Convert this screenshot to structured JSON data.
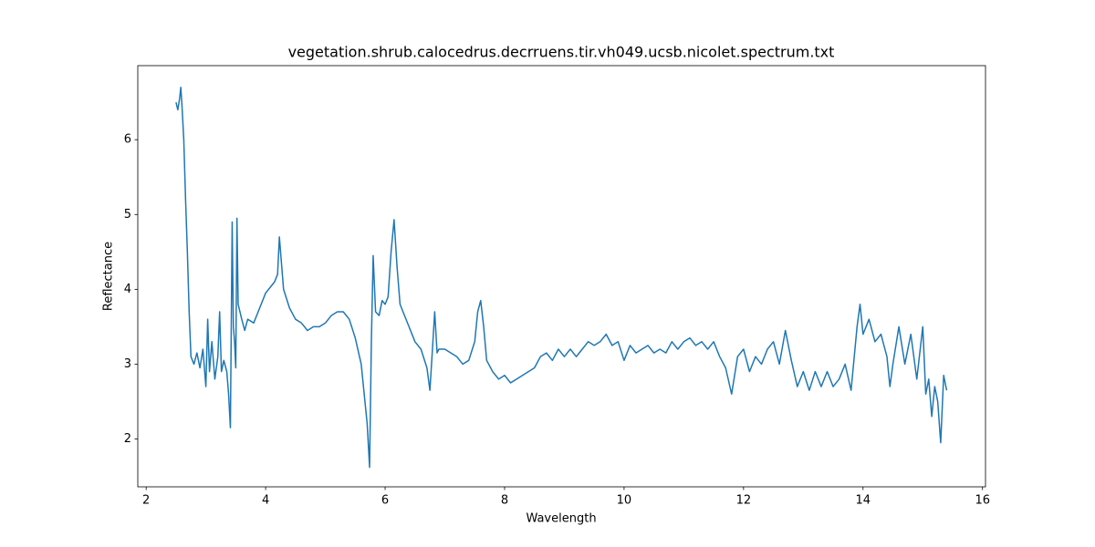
{
  "chart_data": {
    "type": "line",
    "title": "vegetation.shrub.calocedrus.decrruens.tir.vh049.ucsb.nicolet.spectrum.txt",
    "x_label": "Wavelength",
    "y_label": "Reflectance",
    "color": "#1f77b4",
    "xlim": [
      1.86,
      16.05
    ],
    "ylim": [
      1.36,
      6.99
    ],
    "xticks": [
      2,
      4,
      6,
      8,
      10,
      12,
      14,
      16
    ],
    "yticks": [
      2,
      3,
      4,
      5,
      6
    ],
    "x": [
      2.5,
      2.53,
      2.56,
      2.58,
      2.6,
      2.63,
      2.66,
      2.69,
      2.72,
      2.75,
      2.8,
      2.85,
      2.9,
      2.95,
      3.0,
      3.03,
      3.06,
      3.1,
      3.15,
      3.2,
      3.23,
      3.26,
      3.3,
      3.35,
      3.38,
      3.41,
      3.44,
      3.46,
      3.48,
      3.5,
      3.52,
      3.54,
      3.6,
      3.65,
      3.7,
      3.8,
      3.9,
      4.0,
      4.1,
      4.15,
      4.2,
      4.23,
      4.26,
      4.3,
      4.4,
      4.5,
      4.6,
      4.7,
      4.8,
      4.9,
      5.0,
      5.1,
      5.2,
      5.3,
      5.4,
      5.5,
      5.6,
      5.65,
      5.7,
      5.74,
      5.77,
      5.8,
      5.84,
      5.9,
      5.95,
      6.0,
      6.05,
      6.1,
      6.15,
      6.2,
      6.25,
      6.3,
      6.4,
      6.5,
      6.6,
      6.7,
      6.75,
      6.8,
      6.83,
      6.87,
      6.9,
      7.0,
      7.1,
      7.2,
      7.3,
      7.4,
      7.5,
      7.55,
      7.6,
      7.65,
      7.7,
      7.8,
      7.9,
      8.0,
      8.1,
      8.2,
      8.3,
      8.4,
      8.5,
      8.6,
      8.7,
      8.8,
      8.9,
      9.0,
      9.1,
      9.2,
      9.3,
      9.4,
      9.5,
      9.6,
      9.7,
      9.8,
      9.9,
      10.0,
      10.1,
      10.2,
      10.3,
      10.4,
      10.5,
      10.6,
      10.7,
      10.8,
      10.9,
      11.0,
      11.1,
      11.2,
      11.3,
      11.4,
      11.5,
      11.6,
      11.7,
      11.8,
      11.9,
      12.0,
      12.1,
      12.2,
      12.3,
      12.4,
      12.5,
      12.6,
      12.7,
      12.8,
      12.9,
      13.0,
      13.1,
      13.2,
      13.3,
      13.4,
      13.5,
      13.6,
      13.7,
      13.8,
      13.9,
      13.95,
      14.0,
      14.1,
      14.2,
      14.3,
      14.4,
      14.45,
      14.5,
      14.6,
      14.7,
      14.8,
      14.9,
      15.0,
      15.05,
      15.1,
      15.15,
      15.2,
      15.25,
      15.3,
      15.35,
      15.4
    ],
    "values": [
      6.5,
      6.4,
      6.55,
      6.7,
      6.45,
      6.0,
      5.2,
      4.5,
      3.7,
      3.1,
      3.0,
      3.15,
      2.95,
      3.2,
      2.7,
      3.6,
      2.9,
      3.3,
      2.8,
      3.1,
      3.7,
      2.9,
      3.05,
      2.9,
      2.6,
      2.15,
      4.9,
      3.5,
      3.3,
      2.95,
      4.95,
      3.8,
      3.6,
      3.45,
      3.6,
      3.55,
      3.75,
      3.95,
      4.05,
      4.1,
      4.2,
      4.7,
      4.4,
      4.0,
      3.75,
      3.6,
      3.55,
      3.45,
      3.5,
      3.5,
      3.55,
      3.65,
      3.7,
      3.7,
      3.6,
      3.35,
      3.0,
      2.6,
      2.2,
      1.62,
      3.3,
      4.45,
      3.7,
      3.65,
      3.85,
      3.8,
      3.9,
      4.5,
      4.93,
      4.3,
      3.8,
      3.7,
      3.5,
      3.3,
      3.2,
      2.95,
      2.65,
      3.3,
      3.7,
      3.15,
      3.2,
      3.2,
      3.15,
      3.1,
      3.0,
      3.05,
      3.3,
      3.7,
      3.85,
      3.5,
      3.05,
      2.9,
      2.8,
      2.85,
      2.75,
      2.8,
      2.85,
      2.9,
      2.95,
      3.1,
      3.15,
      3.05,
      3.2,
      3.1,
      3.2,
      3.1,
      3.2,
      3.3,
      3.25,
      3.3,
      3.4,
      3.25,
      3.3,
      3.05,
      3.25,
      3.15,
      3.2,
      3.25,
      3.15,
      3.2,
      3.15,
      3.3,
      3.2,
      3.3,
      3.35,
      3.25,
      3.3,
      3.2,
      3.3,
      3.1,
      2.95,
      2.6,
      3.1,
      3.2,
      2.9,
      3.1,
      3.0,
      3.2,
      3.3,
      3.0,
      3.45,
      3.05,
      2.7,
      2.9,
      2.65,
      2.9,
      2.7,
      2.9,
      2.7,
      2.8,
      3.0,
      2.65,
      3.5,
      3.8,
      3.4,
      3.6,
      3.3,
      3.4,
      3.1,
      2.7,
      3.0,
      3.5,
      3.0,
      3.4,
      2.8,
      3.5,
      2.6,
      2.8,
      2.3,
      2.7,
      2.5,
      1.95,
      2.85,
      2.65
    ]
  }
}
